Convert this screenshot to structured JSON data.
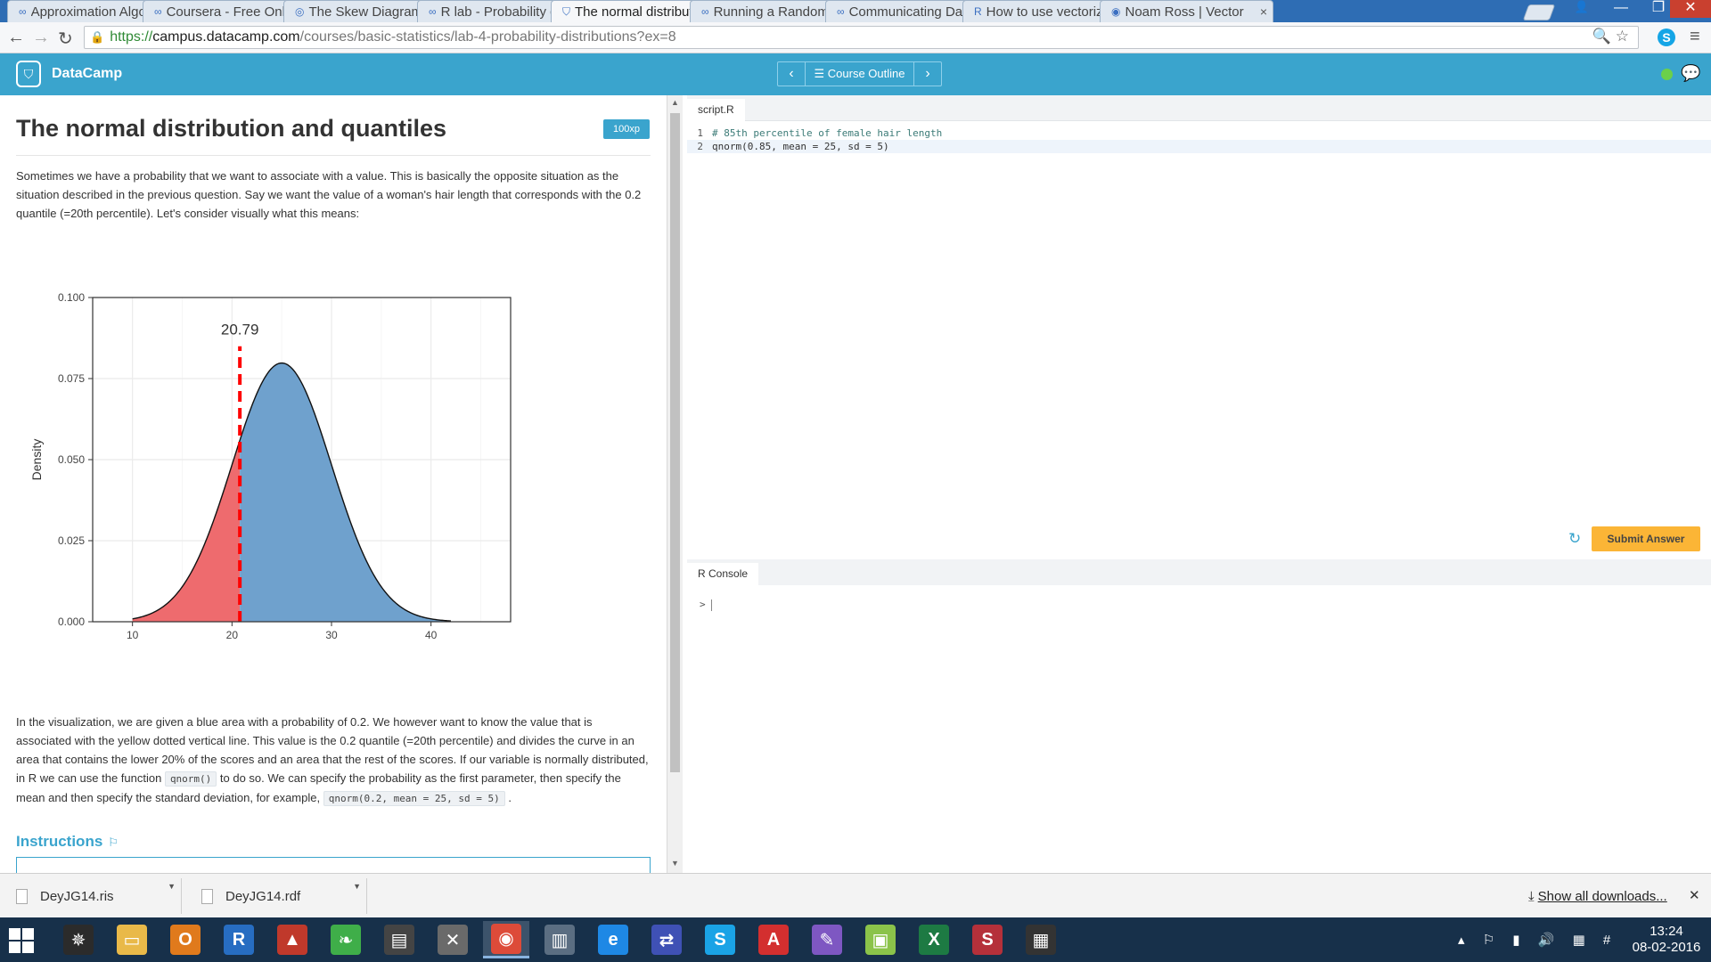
{
  "browser": {
    "tabs": [
      {
        "label": "Approximation Algo",
        "icon": "coursera-icon"
      },
      {
        "label": "Coursera - Free Onli",
        "icon": "coursera-icon"
      },
      {
        "label": "The Skew Diagram -",
        "icon": "rosalind-icon"
      },
      {
        "label": "R lab - Probability di",
        "icon": "coursera-icon"
      },
      {
        "label": "The normal distribut",
        "icon": "datacamp-icon"
      },
      {
        "label": "Running a Random F",
        "icon": "coursera-icon"
      },
      {
        "label": "Communicating Dat",
        "icon": "coursera-icon"
      },
      {
        "label": "How to use vectoriz",
        "icon": "r-icon"
      },
      {
        "label": "Noam Ross | Vector",
        "icon": "github-icon"
      }
    ],
    "active_tab": 4,
    "url": {
      "scheme": "https://",
      "host": "campus.datacamp.com",
      "path": "/courses/basic-statistics/lab-4-probability-distributions?ex=8"
    }
  },
  "header": {
    "brand": "DataCamp",
    "course_outline": "Course Outline"
  },
  "lesson": {
    "title": "The normal distribution and quantiles",
    "xp": "100xp",
    "intro": "Sometimes we have a probability that we want to associate with a value. This is basically the opposite situation as the situation described in the previous question. Say we want the value of a woman's hair length that corresponds with the 0.2 quantile (=20th percentile). Let's consider visually what this means:",
    "body_parts": [
      "In the visualization, we are given a blue area with a probability of 0.2. We however want to know the value that is associated with the yellow dotted vertical line. This value is the 0.2 quantile (=20th percentile) and divides the curve in an area that contains the lower 20% of the scores and an area that the rest of the scores. If our variable is normally distributed, in R we can use the function ",
      "qnorm()",
      " to do so. We can specify the probability as the first parameter, then specify the mean and then specify the standard deviation, for example, ",
      "qnorm(0.2, mean = 25, sd = 5)",
      " ."
    ],
    "instructions_heading": "Instructions"
  },
  "chart_data": {
    "type": "area",
    "distribution": "normal",
    "mean": 25,
    "sd": 5,
    "ylabel": "Density",
    "xlim": [
      6,
      48
    ],
    "ylim": [
      0,
      0.1
    ],
    "xticks": [
      10,
      20,
      30,
      40
    ],
    "yticks": [
      0.0,
      0.025,
      0.05,
      0.075,
      0.1
    ],
    "ytick_labels": [
      "0.000",
      "0.025",
      "0.050",
      "0.075",
      "0.100"
    ],
    "quantile_x": 20.79,
    "quantile_label": "20.79",
    "curve_range": [
      10,
      42
    ],
    "lower_fill": "#ee6b6e",
    "upper_fill": "#6fa1cd",
    "line_color": "#ff0000",
    "grid": true,
    "panel_background": "#ffffff"
  },
  "editor": {
    "tab": "script.R",
    "lines": [
      {
        "num": "1",
        "text": "# 85th percentile of female hair length",
        "kind": "comment"
      },
      {
        "num": "2",
        "text": "qnorm(0.85, mean = 25, sd = 5)",
        "kind": "code"
      }
    ],
    "submit": "Submit Answer"
  },
  "console": {
    "tab": "R Console",
    "prompt": ">"
  },
  "downloads": {
    "items": [
      "DeyJG14.ris",
      "DeyJG14.rdf"
    ],
    "show_all": "Show all downloads..."
  },
  "taskbar": {
    "time": "13:24",
    "date": "08-02-2016"
  }
}
